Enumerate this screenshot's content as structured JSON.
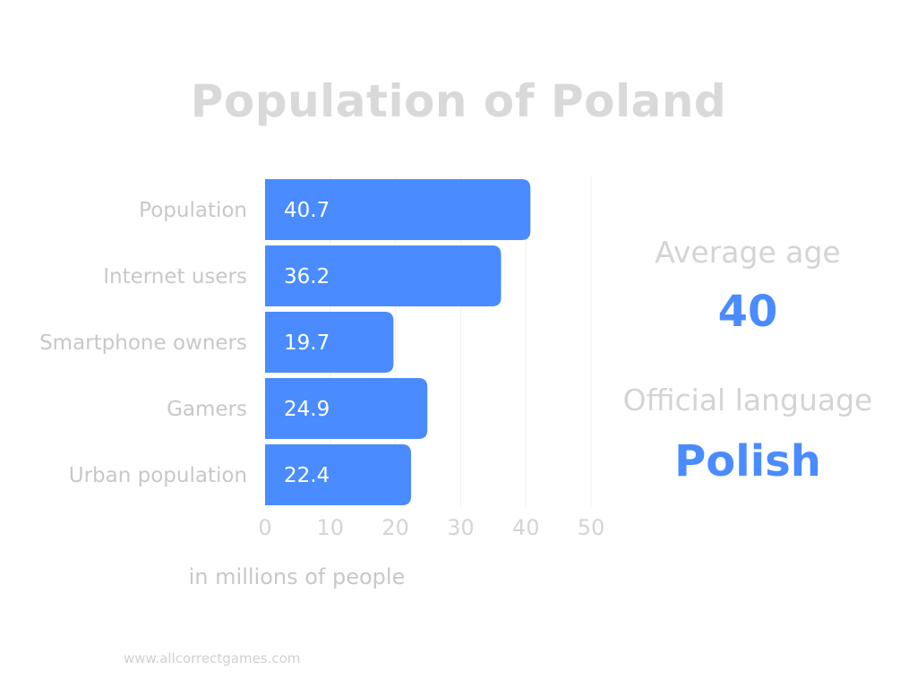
{
  "chart_data": {
    "type": "bar",
    "orientation": "horizontal",
    "title": "Population of Poland",
    "categories": [
      "Population",
      "Internet users",
      "Smartphone owners",
      "Gamers",
      "Urban population"
    ],
    "values": [
      40.7,
      36.2,
      19.7,
      24.9,
      22.4
    ],
    "value_labels": [
      "40.7",
      "36.2",
      "19.7",
      "24.9",
      "22.4"
    ],
    "xlabel": "in millions of people",
    "xlim": [
      0,
      50
    ],
    "xticks": [
      "0",
      "10",
      "20",
      "30",
      "40",
      "50"
    ],
    "grid": "vertical",
    "bar_color": "#4a8cff"
  },
  "stats": {
    "average_age_label": "Average age",
    "average_age_value": "40",
    "language_label": "Official language",
    "language_value": "Polish",
    "accent_color": "#4a8cff"
  },
  "footer": "www.allcorrectgames.com"
}
